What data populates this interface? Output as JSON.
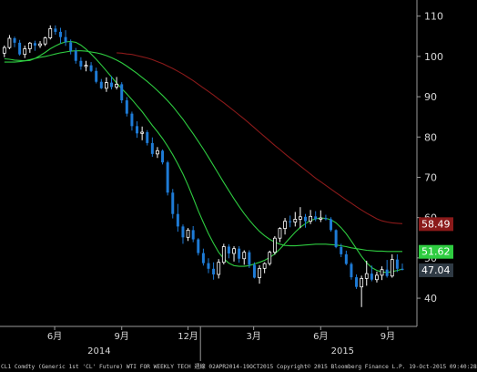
{
  "chart_data": {
    "type": "candlestick",
    "y_axis": {
      "ticks": [
        40,
        50,
        60,
        70,
        80,
        90,
        100,
        110
      ],
      "range": [
        33,
        114
      ],
      "position": "right"
    },
    "x_axis": {
      "ticks": [
        {
          "label": "6月",
          "month": "2014-06"
        },
        {
          "label": "9月",
          "month": "2014-09"
        },
        {
          "label": "12月",
          "month": "2014-12"
        },
        {
          "label": "3月",
          "month": "2015-03"
        },
        {
          "label": "6月",
          "month": "2015-06"
        },
        {
          "label": "9月",
          "month": "2015-09"
        }
      ],
      "years": [
        {
          "label": "2014",
          "month": "2014-08"
        },
        {
          "label": "2015",
          "month": "2015-07"
        }
      ],
      "range": [
        "2014-04-01",
        "2015-10-25"
      ]
    },
    "weeks_start": "2014-04-07",
    "ohlc": [
      [
        100.8,
        102.7,
        99.8,
        102.2
      ],
      [
        102.2,
        105.3,
        101.8,
        104.5
      ],
      [
        104.5,
        104.9,
        102.3,
        103.4
      ],
      [
        103.4,
        104.1,
        100.2,
        100.5
      ],
      [
        100.5,
        102.7,
        99.6,
        101.9
      ],
      [
        101.9,
        103.6,
        100.9,
        103.3
      ],
      [
        103.3,
        103.9,
        101.4,
        102.7
      ],
      [
        102.7,
        103.8,
        102.1,
        103.1
      ],
      [
        103.1,
        104.9,
        102.6,
        104.6
      ],
      [
        104.6,
        107.7,
        104.2,
        106.9
      ],
      [
        106.9,
        107.7,
        105.4,
        106.1
      ],
      [
        106.1,
        107.1,
        103.2,
        104.8
      ],
      [
        104.8,
        106.5,
        102.6,
        103.5
      ],
      [
        103.5,
        104.2,
        100.5,
        101.4
      ],
      [
        101.4,
        102.1,
        98.2,
        98.9
      ],
      [
        98.9,
        99.8,
        96.7,
        97.5
      ],
      [
        97.5,
        98.9,
        96.3,
        97.8
      ],
      [
        97.8,
        98.6,
        96.1,
        96.4
      ],
      [
        96.4,
        97.2,
        93.3,
        93.7
      ],
      [
        93.7,
        94.4,
        91.9,
        92.1
      ],
      [
        92.1,
        94.8,
        91.2,
        93.5
      ],
      [
        93.5,
        95.1,
        91.8,
        92.4
      ],
      [
        92.4,
        94.9,
        91.8,
        93.1
      ],
      [
        93.1,
        93.6,
        88.4,
        89.1
      ],
      [
        89.1,
        89.9,
        85.1,
        85.8
      ],
      [
        85.8,
        86.3,
        81.6,
        82.7
      ],
      [
        82.7,
        83.9,
        79.8,
        80.9
      ],
      [
        80.9,
        82.6,
        79.2,
        81.2
      ],
      [
        81.2,
        81.7,
        77.9,
        78.5
      ],
      [
        78.5,
        79.9,
        75.1,
        75.8
      ],
      [
        75.8,
        77.5,
        74.8,
        76.6
      ],
      [
        76.6,
        76.9,
        73.2,
        73.7
      ],
      [
        73.7,
        74.1,
        65.5,
        66.2
      ],
      [
        66.2,
        67.1,
        59.8,
        60.9
      ],
      [
        60.9,
        63.4,
        56.5,
        57.8
      ],
      [
        57.8,
        58.3,
        53.5,
        55.1
      ],
      [
        55.1,
        57.4,
        54.2,
        56.9
      ],
      [
        56.9,
        57.9,
        53.9,
        54.6
      ],
      [
        54.6,
        54.9,
        50.6,
        51.2
      ],
      [
        51.2,
        52.3,
        48.1,
        48.7
      ],
      [
        48.7,
        49.9,
        46.2,
        47.3
      ],
      [
        47.3,
        48.9,
        44.6,
        45.9
      ],
      [
        45.9,
        49.7,
        44.9,
        48.9
      ],
      [
        48.9,
        53.5,
        48.4,
        52.8
      ],
      [
        52.8,
        53.4,
        49.9,
        51.1
      ],
      [
        51.1,
        52.9,
        49.1,
        52.3
      ],
      [
        52.3,
        52.9,
        48.8,
        49.8
      ],
      [
        49.8,
        51.9,
        48.3,
        51.4
      ],
      [
        51.4,
        51.9,
        47.5,
        48.3
      ],
      [
        48.3,
        48.9,
        44.9,
        45.1
      ],
      [
        45.1,
        48.2,
        43.6,
        47.4
      ],
      [
        47.4,
        48.9,
        46.2,
        48.6
      ],
      [
        48.6,
        51.8,
        48.1,
        51.4
      ],
      [
        51.4,
        55.4,
        50.8,
        54.9
      ],
      [
        54.9,
        57.6,
        53.9,
        57.3
      ],
      [
        57.3,
        59.9,
        55.8,
        59.1
      ],
      [
        59.1,
        60.5,
        57.6,
        58.9
      ],
      [
        58.9,
        61.4,
        57.8,
        59.6
      ],
      [
        59.6,
        62.6,
        57.4,
        60.2
      ],
      [
        60.2,
        60.9,
        57.5,
        59.1
      ],
      [
        59.1,
        61.9,
        58.4,
        60.3
      ],
      [
        60.3,
        61.6,
        59.1,
        59.6
      ],
      [
        59.6,
        61.8,
        58.9,
        59.9
      ],
      [
        59.9,
        60.7,
        59.3,
        59.6
      ],
      [
        59.6,
        60.1,
        56.5,
        56.9
      ],
      [
        56.9,
        57.1,
        52.4,
        52.7
      ],
      [
        52.7,
        53.5,
        50.2,
        50.9
      ],
      [
        50.9,
        51.8,
        48.2,
        48.5
      ],
      [
        48.5,
        48.9,
        44.6,
        45.2
      ],
      [
        45.2,
        45.9,
        42.3,
        42.8
      ],
      [
        42.8,
        45.6,
        37.8,
        44.9
      ],
      [
        44.9,
        49.3,
        43.1,
        46.1
      ],
      [
        46.1,
        48.1,
        44.2,
        44.6
      ],
      [
        44.6,
        46.6,
        43.9,
        45.7
      ],
      [
        45.7,
        47.9,
        44.5,
        47.1
      ],
      [
        47.1,
        49.5,
        45.1,
        45.5
      ],
      [
        45.5,
        50.9,
        45.1,
        49.6
      ],
      [
        49.6,
        50.9,
        46.5,
        47.3
      ],
      [
        47.3,
        48.6,
        46.9,
        47.04
      ]
    ],
    "series": [
      {
        "name": "",
        "color": "#2ecc40",
        "values": [
          99.4,
          99.3,
          99.1,
          99.0,
          98.9,
          99.0,
          99.5,
          100.2,
          101.0,
          101.9,
          102.6,
          103.2,
          103.6,
          103.7,
          103.5,
          102.8,
          101.8,
          100.6,
          99.3,
          97.9,
          96.4,
          94.9,
          93.4,
          92.0,
          90.7,
          89.3,
          87.8,
          86.3,
          84.6,
          82.9,
          81.3,
          79.6,
          77.7,
          75.6,
          73.3,
          70.8,
          68.0,
          64.9,
          61.7,
          58.8,
          56.0,
          53.6,
          51.4,
          49.8,
          48.7,
          48.1,
          47.9,
          47.9,
          48.1,
          48.5,
          48.9,
          49.4,
          50.1,
          51.0,
          52.2,
          53.6,
          55.0,
          56.4,
          57.6,
          58.5,
          59.3,
          59.7,
          59.9,
          59.8,
          59.5,
          58.7,
          57.5,
          56.0,
          54.2,
          52.3,
          50.4,
          48.8,
          47.6,
          46.9,
          46.5,
          46.4,
          46.6,
          46.9,
          47.2
        ]
      },
      {
        "name": "",
        "color": "#2ecc40",
        "values": [
          98.6,
          98.6,
          98.6,
          98.7,
          98.9,
          99.2,
          99.5,
          99.8,
          100.0,
          100.3,
          100.6,
          100.9,
          101.1,
          101.3,
          101.4,
          101.4,
          101.3,
          101.1,
          100.9,
          100.6,
          100.2,
          99.7,
          99.1,
          98.4,
          97.6,
          96.7,
          95.8,
          94.8,
          93.8,
          92.7,
          91.5,
          90.3,
          89.0,
          87.6,
          86.0,
          84.4,
          82.6,
          80.8,
          78.9,
          77.0,
          75.0,
          72.9,
          70.8,
          68.7,
          66.7,
          64.7,
          62.8,
          61.0,
          59.4,
          57.9,
          56.6,
          55.5,
          54.6,
          53.9,
          53.4,
          53.1,
          53.0,
          53.0,
          53.1,
          53.2,
          53.3,
          53.4,
          53.4,
          53.4,
          53.3,
          53.2,
          53.0,
          52.8,
          52.5,
          52.3,
          52.1,
          51.9,
          51.8,
          51.7,
          51.7,
          51.6,
          51.6,
          51.6,
          51.6
        ]
      },
      {
        "name": "",
        "color": "#8b1a1a",
        "values": [
          null,
          null,
          null,
          null,
          null,
          null,
          null,
          null,
          null,
          null,
          null,
          null,
          null,
          null,
          null,
          null,
          null,
          null,
          null,
          null,
          null,
          null,
          100.9,
          100.8,
          100.6,
          100.5,
          100.2,
          99.9,
          99.6,
          99.2,
          98.7,
          98.2,
          97.6,
          97.0,
          96.3,
          95.6,
          94.8,
          94.0,
          93.1,
          92.2,
          91.3,
          90.4,
          89.4,
          88.5,
          87.5,
          86.5,
          85.5,
          84.5,
          83.4,
          82.3,
          81.2,
          80.1,
          79.0,
          77.9,
          76.9,
          75.8,
          74.8,
          73.8,
          72.8,
          71.8,
          70.8,
          69.8,
          68.9,
          68.0,
          67.1,
          66.2,
          65.3,
          64.4,
          63.6,
          62.7,
          61.9,
          61.1,
          60.4,
          59.7,
          59.2,
          58.9,
          58.7,
          58.6,
          58.49
        ]
      }
    ],
    "last_price_labels": [
      {
        "value": 58.49,
        "text": "58.49",
        "color": "#8b1a1a"
      },
      {
        "value": 51.62,
        "text": "51.62",
        "color": "#2ecc40"
      },
      {
        "value": 47.04,
        "text": "47.04",
        "color": "#2f3a44"
      }
    ],
    "grid": false
  },
  "footer": {
    "text": "CL1 Comdty (Generic 1st 'CL' Future) WTI FOR WEEKLY TECH  週線 02APR2014-19OCT2015 Copyright© 2015 Bloomberg Finance L.P.  19-Oct-2015 09:40:28"
  }
}
